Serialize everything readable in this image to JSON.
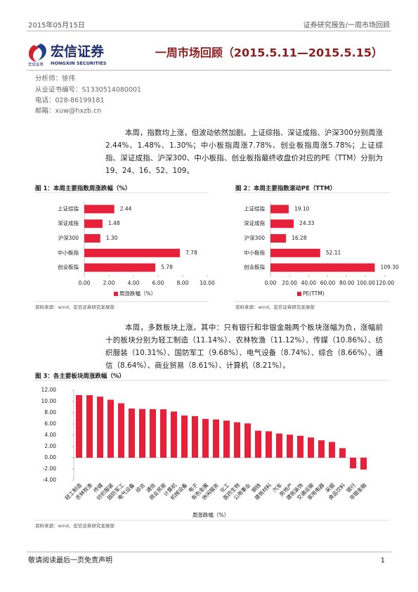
{
  "header": {
    "date": "2015年05月15日",
    "section": "证券研究报告/一周市场回顾"
  },
  "logo": {
    "name": "宏信证券",
    "english": "HONGXIN SECURITIES",
    "small": "宏信证券"
  },
  "title": "一周市场回顾（2015.5.11—2015.5.15）",
  "analyst": [
    "分析师：徐伟",
    "从业证书编号：S1330514080001",
    "电话：028-86199181",
    "邮箱：xuw@hxzb.cn"
  ],
  "paragraphs": [
    "本周，指数均上涨，但波动依然加剧。上证综指、深证成指、沪深300分别周涨2.44%、1.48%、1.30%；中小板指周涨7.78%、创业板指周涨5.78%；上证综指、深证成指、沪深300、中小板指、创业板指最终收盘价对应的PE（TTM）分别为19、24、16、52、109。",
    "本周，多数板块上涨。其中：只有银行和非银金融两个板块涨幅为负，涨幅前十的板块分别为轻工制造（11.14%）、农林牧渔（11.12%）、传媒（10.86%）、纺织服装（10.31%）、国防军工（9.68%）、电气设备（8.74%）、综合（8.66%）、通信（8.64%）、商业贸易（8.61%）、计算机（8.21%）。"
  ],
  "chart_data": [
    {
      "type": "bar",
      "orientation": "horizontal",
      "title": "图 1：本周主要指数周涨跌幅（%）",
      "categories": [
        "上证综指",
        "深证成指",
        "沪深300",
        "中小板指",
        "创业板指"
      ],
      "series": [
        {
          "name": "周涨跌幅（%）",
          "color": "#e8213a",
          "values": [
            2.44,
            1.48,
            1.3,
            7.78,
            5.78
          ],
          "value_labels": [
            "2.44",
            "1.48",
            "1.30",
            "7.78",
            "5.78"
          ]
        }
      ],
      "xlim": [
        0,
        10
      ],
      "xticks": [
        {
          "value": 0,
          "label": "0.00"
        },
        {
          "value": 2,
          "label": "2.00"
        },
        {
          "value": 4,
          "label": "4.00"
        },
        {
          "value": 6,
          "label": "6.00"
        },
        {
          "value": 8,
          "label": "8.00"
        },
        {
          "value": 10,
          "label": "10.00"
        }
      ],
      "grid": false,
      "legend_marker": true,
      "source": "资料来源：wind、宏信证券研究发展部"
    },
    {
      "type": "bar",
      "orientation": "horizontal",
      "title": "图 2：本周主要指数滚动PE（TTM）",
      "categories": [
        "上证综指",
        "深证成指",
        "沪深300",
        "中小板指",
        "创业板指"
      ],
      "series": [
        {
          "name": "PE(TTM)",
          "color": "#e8213a",
          "values": [
            19.1,
            24.33,
            16.28,
            52.11,
            109.3
          ],
          "value_labels": [
            "19.10",
            "24.33",
            "16.28",
            "52.11",
            "109.30"
          ]
        }
      ],
      "xlim": [
        0,
        120
      ],
      "xticks": [
        {
          "value": 0,
          "label": "0.00"
        },
        {
          "value": 20,
          "label": "20.00"
        },
        {
          "value": 40,
          "label": "40.00"
        },
        {
          "value": 60,
          "label": "60.00"
        },
        {
          "value": 80,
          "label": "80.00"
        },
        {
          "value": 100,
          "label": "100.00"
        },
        {
          "value": 120,
          "label": "120.00"
        }
      ],
      "grid": false,
      "legend_marker": true,
      "source": "资料来源：wind、宏信证券研究发展部"
    },
    {
      "type": "bar",
      "orientation": "vertical",
      "title": "图 3：各主要板块周涨跌幅（%）",
      "categories": [
        "轻工制造",
        "农林牧渔",
        "传媒",
        "纺织服装",
        "国防军工",
        "电气设备",
        "综合",
        "通信",
        "商业贸易",
        "计算机",
        "机械设备",
        "电子",
        "有色金属",
        "休闲服务",
        "化工",
        "医药生物",
        "公用事业",
        "钢铁",
        "建筑材料",
        "汽车",
        "房地产",
        "建筑装饰",
        "交通运输",
        "家用电器",
        "采掘",
        "食品饮料",
        "银行",
        "非银金融"
      ],
      "series": [
        {
          "name": "周涨跌幅（%）",
          "color": "#e8213a",
          "values": [
            11.14,
            11.12,
            10.86,
            10.31,
            9.68,
            8.74,
            8.66,
            8.64,
            8.61,
            8.21,
            7.5,
            7.4,
            6.9,
            6.8,
            6.6,
            6.3,
            6.1,
            4.8,
            4.7,
            4.3,
            4.1,
            3.9,
            3.6,
            3.1,
            2.8,
            1.7,
            -1.9,
            -2.1
          ]
        }
      ],
      "ylim": [
        -4,
        12
      ],
      "yticks": [
        {
          "value": -4,
          "label": "-4.00"
        },
        {
          "value": -2,
          "label": "-2.00"
        },
        {
          "value": 0,
          "label": "0.00"
        },
        {
          "value": 2,
          "label": "2.00"
        },
        {
          "value": 4,
          "label": "4.00"
        },
        {
          "value": 6,
          "label": "6.00"
        },
        {
          "value": 8,
          "label": "8.00"
        },
        {
          "value": 10,
          "label": "10.00"
        },
        {
          "value": 12,
          "label": "12.00"
        }
      ],
      "grid": false,
      "legend_marker": false,
      "source": "资料来源：wind、宏信证券研究发展部"
    }
  ],
  "footer": {
    "disclaimer": "敬请阅读最后一页免责声明",
    "page": "1"
  }
}
